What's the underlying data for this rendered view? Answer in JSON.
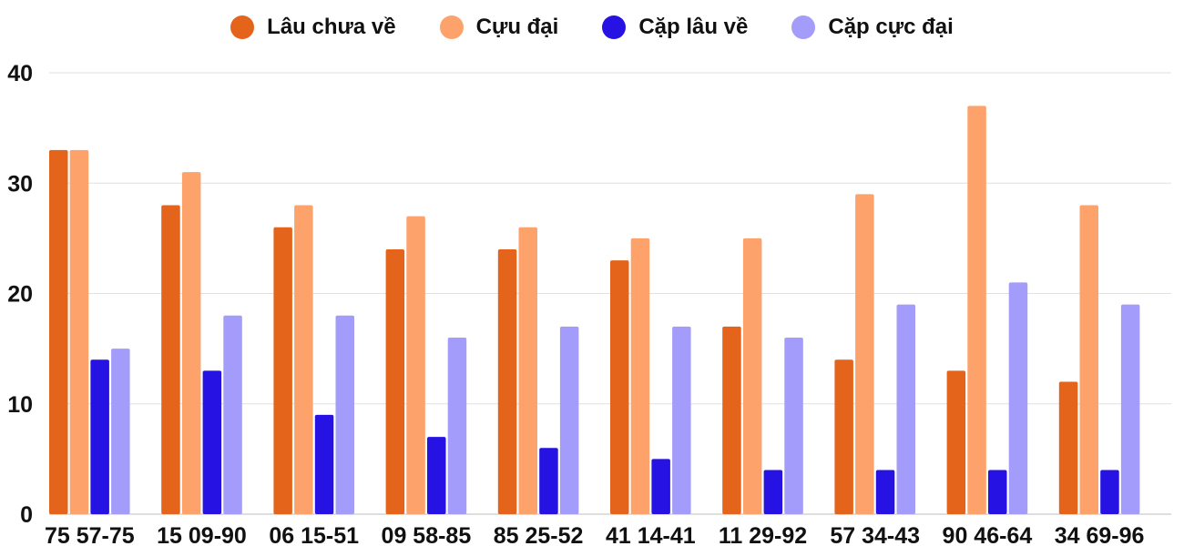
{
  "chart_data": {
    "type": "bar",
    "categories": [
      "75 57-75",
      "15 09-90",
      "06 15-51",
      "09 58-85",
      "85 25-52",
      "41 14-41",
      "11 29-92",
      "57 34-43",
      "90 46-64",
      "34 69-96"
    ],
    "series": [
      {
        "name": "Lâu chưa về",
        "color": "#e3641a",
        "values": [
          33,
          28,
          26,
          24,
          24,
          23,
          17,
          14,
          13,
          12
        ]
      },
      {
        "name": "Cựu đại",
        "color": "#fda26b",
        "values": [
          33,
          31,
          28,
          27,
          26,
          25,
          25,
          29,
          37,
          28
        ]
      },
      {
        "name": "Cặp lâu về",
        "color": "#2512e3",
        "values": [
          14,
          13,
          9,
          7,
          6,
          5,
          4,
          4,
          4,
          4
        ]
      },
      {
        "name": "Cặp cực đại",
        "color": "#a39cfa",
        "values": [
          15,
          18,
          18,
          16,
          17,
          17,
          16,
          19,
          21,
          19
        ]
      }
    ],
    "ylim": [
      0,
      40
    ],
    "yticks": [
      "0",
      "10",
      "20",
      "30",
      "40"
    ],
    "grid": true,
    "legend_position": "top-center"
  }
}
